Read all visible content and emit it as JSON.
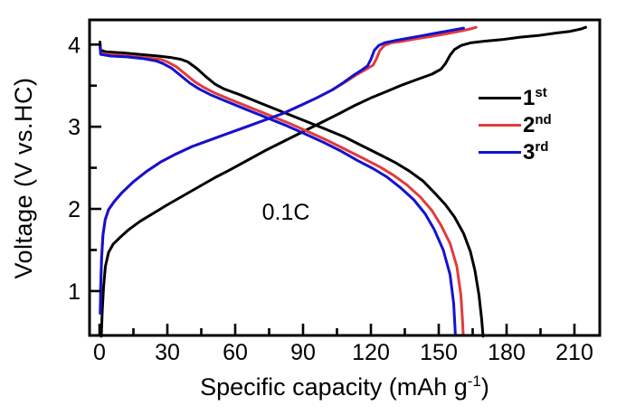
{
  "chart_data": {
    "type": "line",
    "title": "",
    "xlabel": "Specific capacity (mAh g-1)",
    "xlabel_parts": {
      "prefix": "Specific capacity (mAh g",
      "sup": "-1",
      "suffix": ")"
    },
    "ylabel": "Voltage (V vs.HC)",
    "annotation": "0.1C",
    "xlim": [
      -4.4,
      221.2
    ],
    "ylim": [
      0.46,
      4.3
    ],
    "x_ticks_major": [
      0,
      30,
      60,
      90,
      120,
      150,
      180,
      210
    ],
    "x_ticks_minor": [
      15,
      45,
      75,
      105,
      135,
      165,
      195
    ],
    "y_ticks_major": [
      1,
      2,
      3,
      4
    ],
    "y_ticks_minor": [
      1.5,
      2.5,
      3.5
    ],
    "grid": false,
    "legend_position": "center-right",
    "legend": [
      {
        "num": "1",
        "sup": "st"
      },
      {
        "num": "2",
        "sup": "nd"
      },
      {
        "num": "3",
        "sup": "rd"
      }
    ],
    "series": [
      {
        "name": "1st",
        "color": "#000000",
        "discharge": [
          [
            0.2,
            4.03
          ],
          [
            0.5,
            3.93
          ],
          [
            3,
            3.91
          ],
          [
            10,
            3.9
          ],
          [
            18,
            3.88
          ],
          [
            26,
            3.86
          ],
          [
            32,
            3.84
          ],
          [
            36,
            3.82
          ],
          [
            39,
            3.79
          ],
          [
            43,
            3.71
          ],
          [
            47,
            3.61
          ],
          [
            51,
            3.52
          ],
          [
            55,
            3.46
          ],
          [
            62,
            3.39
          ],
          [
            70,
            3.3
          ],
          [
            80,
            3.19
          ],
          [
            90,
            3.08
          ],
          [
            100,
            2.97
          ],
          [
            108,
            2.88
          ],
          [
            116,
            2.77
          ],
          [
            124,
            2.66
          ],
          [
            131,
            2.56
          ],
          [
            137,
            2.46
          ],
          [
            143,
            2.34
          ],
          [
            148,
            2.2
          ],
          [
            153,
            2.05
          ],
          [
            157,
            1.9
          ],
          [
            161,
            1.7
          ],
          [
            164,
            1.48
          ],
          [
            166,
            1.25
          ],
          [
            167.8,
            0.95
          ],
          [
            169,
            0.65
          ],
          [
            169.6,
            0.45
          ]
        ],
        "charge": [
          [
            0.8,
            0.45
          ],
          [
            1.2,
            0.75
          ],
          [
            1.8,
            1.05
          ],
          [
            2.6,
            1.3
          ],
          [
            4,
            1.47
          ],
          [
            6,
            1.57
          ],
          [
            9,
            1.65
          ],
          [
            13,
            1.75
          ],
          [
            18,
            1.85
          ],
          [
            24,
            1.95
          ],
          [
            30,
            2.05
          ],
          [
            37,
            2.16
          ],
          [
            44,
            2.27
          ],
          [
            51,
            2.38
          ],
          [
            58,
            2.48
          ],
          [
            66,
            2.6
          ],
          [
            74,
            2.72
          ],
          [
            82,
            2.83
          ],
          [
            90,
            2.94
          ],
          [
            98,
            3.05
          ],
          [
            106,
            3.16
          ],
          [
            113,
            3.26
          ],
          [
            120,
            3.35
          ],
          [
            127,
            3.43
          ],
          [
            134,
            3.51
          ],
          [
            141,
            3.58
          ],
          [
            147,
            3.64
          ],
          [
            151,
            3.7
          ],
          [
            153,
            3.77
          ],
          [
            155,
            3.87
          ],
          [
            157,
            3.94
          ],
          [
            160,
            3.99
          ],
          [
            164,
            4.02
          ],
          [
            170,
            4.04
          ],
          [
            178,
            4.06
          ],
          [
            186,
            4.09
          ],
          [
            194,
            4.11
          ],
          [
            202,
            4.14
          ],
          [
            208,
            4.16
          ],
          [
            213,
            4.19
          ],
          [
            215,
            4.21
          ]
        ]
      },
      {
        "name": "2nd",
        "color": "#e23b3c",
        "discharge": [
          [
            0.2,
            4.0
          ],
          [
            0.5,
            3.89
          ],
          [
            5,
            3.88
          ],
          [
            12,
            3.86
          ],
          [
            20,
            3.84
          ],
          [
            27,
            3.82
          ],
          [
            30,
            3.79
          ],
          [
            34,
            3.73
          ],
          [
            38,
            3.64
          ],
          [
            42,
            3.55
          ],
          [
            46,
            3.48
          ],
          [
            51,
            3.41
          ],
          [
            58,
            3.33
          ],
          [
            66,
            3.24
          ],
          [
            75,
            3.14
          ],
          [
            84,
            3.04
          ],
          [
            93,
            2.93
          ],
          [
            101,
            2.83
          ],
          [
            109,
            2.72
          ],
          [
            117,
            2.61
          ],
          [
            124,
            2.51
          ],
          [
            130,
            2.41
          ],
          [
            136,
            2.29
          ],
          [
            142,
            2.14
          ],
          [
            147,
            1.98
          ],
          [
            151,
            1.8
          ],
          [
            155,
            1.58
          ],
          [
            158,
            1.3
          ],
          [
            159.8,
            0.95
          ],
          [
            160.6,
            0.6
          ],
          [
            160.8,
            0.47
          ]
        ],
        "charge": [
          [
            0.3,
            0.73
          ],
          [
            0.5,
            1.05
          ],
          [
            0.9,
            1.4
          ],
          [
            1.5,
            1.68
          ],
          [
            2.5,
            1.87
          ],
          [
            4,
            1.99
          ],
          [
            6.5,
            2.09
          ],
          [
            10,
            2.2
          ],
          [
            15,
            2.33
          ],
          [
            21,
            2.46
          ],
          [
            27,
            2.57
          ],
          [
            34,
            2.67
          ],
          [
            41,
            2.76
          ],
          [
            49,
            2.84
          ],
          [
            57,
            2.92
          ],
          [
            65,
            3.0
          ],
          [
            73,
            3.08
          ],
          [
            81,
            3.16
          ],
          [
            89,
            3.26
          ],
          [
            96,
            3.35
          ],
          [
            103,
            3.45
          ],
          [
            109,
            3.55
          ],
          [
            114,
            3.64
          ],
          [
            118,
            3.7
          ],
          [
            121,
            3.75
          ],
          [
            122.5,
            3.83
          ],
          [
            124,
            3.93
          ],
          [
            126,
            3.99
          ],
          [
            129,
            4.02
          ],
          [
            134,
            4.04
          ],
          [
            140,
            4.07
          ],
          [
            147,
            4.1
          ],
          [
            153,
            4.13
          ],
          [
            159,
            4.16
          ],
          [
            164,
            4.19
          ],
          [
            166.5,
            4.21
          ]
        ]
      },
      {
        "name": "3rd",
        "color": "#1412cf",
        "discharge": [
          [
            0.2,
            3.99
          ],
          [
            0.5,
            3.88
          ],
          [
            5,
            3.86
          ],
          [
            12,
            3.85
          ],
          [
            19,
            3.83
          ],
          [
            25,
            3.8
          ],
          [
            28,
            3.77
          ],
          [
            32,
            3.71
          ],
          [
            36,
            3.62
          ],
          [
            40,
            3.53
          ],
          [
            44,
            3.46
          ],
          [
            49,
            3.39
          ],
          [
            56,
            3.31
          ],
          [
            64,
            3.22
          ],
          [
            73,
            3.12
          ],
          [
            82,
            3.02
          ],
          [
            91,
            2.91
          ],
          [
            99,
            2.81
          ],
          [
            107,
            2.7
          ],
          [
            114,
            2.59
          ],
          [
            121,
            2.49
          ],
          [
            127,
            2.39
          ],
          [
            133,
            2.26
          ],
          [
            139,
            2.11
          ],
          [
            144,
            1.94
          ],
          [
            148,
            1.75
          ],
          [
            152,
            1.5
          ],
          [
            155,
            1.2
          ],
          [
            156.6,
            0.85
          ],
          [
            157.2,
            0.55
          ],
          [
            157.3,
            0.47
          ]
        ],
        "charge": [
          [
            0.3,
            0.73
          ],
          [
            0.5,
            1.05
          ],
          [
            0.9,
            1.4
          ],
          [
            1.5,
            1.68
          ],
          [
            2.5,
            1.87
          ],
          [
            4,
            1.99
          ],
          [
            6.5,
            2.09
          ],
          [
            10,
            2.2
          ],
          [
            15,
            2.33
          ],
          [
            21,
            2.46
          ],
          [
            27,
            2.57
          ],
          [
            34,
            2.67
          ],
          [
            41,
            2.76
          ],
          [
            49,
            2.84
          ],
          [
            57,
            2.92
          ],
          [
            65,
            3.0
          ],
          [
            73,
            3.08
          ],
          [
            81,
            3.16
          ],
          [
            89,
            3.26
          ],
          [
            96,
            3.35
          ],
          [
            103,
            3.45
          ],
          [
            108,
            3.54
          ],
          [
            112,
            3.62
          ],
          [
            116,
            3.69
          ],
          [
            118.5,
            3.74
          ],
          [
            120,
            3.82
          ],
          [
            121.5,
            3.93
          ],
          [
            123.5,
            3.99
          ],
          [
            126,
            4.02
          ],
          [
            131,
            4.05
          ],
          [
            137,
            4.08
          ],
          [
            143,
            4.11
          ],
          [
            149,
            4.14
          ],
          [
            155,
            4.17
          ],
          [
            159,
            4.19
          ],
          [
            161,
            4.2
          ]
        ]
      }
    ]
  }
}
